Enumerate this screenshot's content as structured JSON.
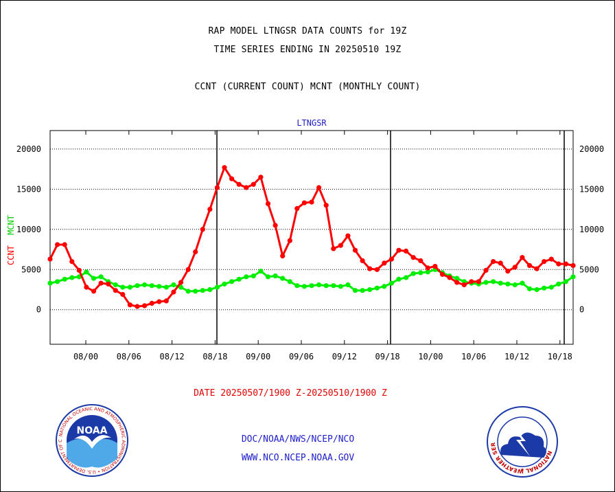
{
  "header": {
    "title_line1": "RAP MODEL LTNGSR DATA COUNTS for 19Z",
    "title_line2": "TIME SERIES ENDING IN 20250510 19Z",
    "subtitle": "CCNT (CURRENT COUNT) MCNT (MONTHLY COUNT)"
  },
  "chart_data": {
    "type": "line",
    "title": "LTNGSR",
    "ylabel_ccnt": "CCNT",
    "ylabel_mcnt": "MCNT",
    "ylim": [
      -4300,
      22300
    ],
    "grid": true,
    "y_ticks": [
      0,
      5000,
      10000,
      15000,
      20000
    ],
    "y_tick_labels": [
      "0",
      "5000",
      "10000",
      "15000",
      "20000"
    ],
    "x_tick_labels": [
      "08/00",
      "08/06",
      "08/12",
      "08/18",
      "09/00",
      "09/06",
      "09/12",
      "09/18",
      "10/00",
      "10/06",
      "10/12",
      "10/18"
    ],
    "series": [
      {
        "name": "CCNT",
        "color": "#ff0000",
        "values": [
          6300,
          8100,
          8100,
          6000,
          4900,
          2800,
          2300,
          3300,
          3200,
          2400,
          1900,
          600,
          400,
          500,
          800,
          1000,
          1100,
          2200,
          3400,
          5000,
          7200,
          10000,
          12500,
          15200,
          17700,
          16300,
          15600,
          15200,
          15600,
          16500,
          13200,
          10500,
          6700,
          8600,
          12600,
          13300,
          13400,
          15200,
          13000,
          7600,
          8000,
          9200,
          7400,
          6100,
          5100,
          5000,
          5800,
          6300,
          7400,
          7300,
          6500,
          6100,
          5200,
          5400,
          4400,
          4000,
          3400,
          3100,
          3500,
          3500,
          4900,
          6000,
          5800,
          4800,
          5300,
          6500,
          5500,
          5100,
          6000,
          6300,
          5700,
          5700,
          5500
        ]
      },
      {
        "name": "MCNT",
        "color": "#00ee00",
        "values": [
          3300,
          3500,
          3800,
          4000,
          4100,
          4700,
          3900,
          4100,
          3500,
          3100,
          2800,
          2800,
          3000,
          3100,
          3000,
          2900,
          2800,
          3100,
          2800,
          2300,
          2300,
          2400,
          2500,
          2800,
          3200,
          3500,
          3800,
          4100,
          4200,
          4800,
          4100,
          4200,
          3900,
          3500,
          3000,
          2900,
          3000,
          3100,
          3000,
          3000,
          2900,
          3100,
          2400,
          2400,
          2500,
          2700,
          2900,
          3300,
          3800,
          4000,
          4500,
          4600,
          4700,
          5000,
          4600,
          4200,
          3900,
          3500,
          3300,
          3200,
          3400,
          3500,
          3300,
          3200,
          3100,
          3300,
          2600,
          2500,
          2700,
          2800,
          3200,
          3500,
          4100
        ]
      }
    ]
  },
  "date_range": "DATE 20250507/1900 Z-20250510/1900 Z",
  "footer": {
    "line1": "DOC/NOAA/NWS/NCEP/NCO",
    "line2": "WWW.NCO.NCEP.NOAA.GOV"
  },
  "logos": {
    "noaa_text": "NOAA",
    "noaa_ring_text": "NATIONAL OCEANIC AND ATMOSPHERIC ADMINISTRATION • U.S. DEPARTMENT OF COMMERCE",
    "nws_ring_text": "NATIONAL WEATHER SERVICE"
  }
}
